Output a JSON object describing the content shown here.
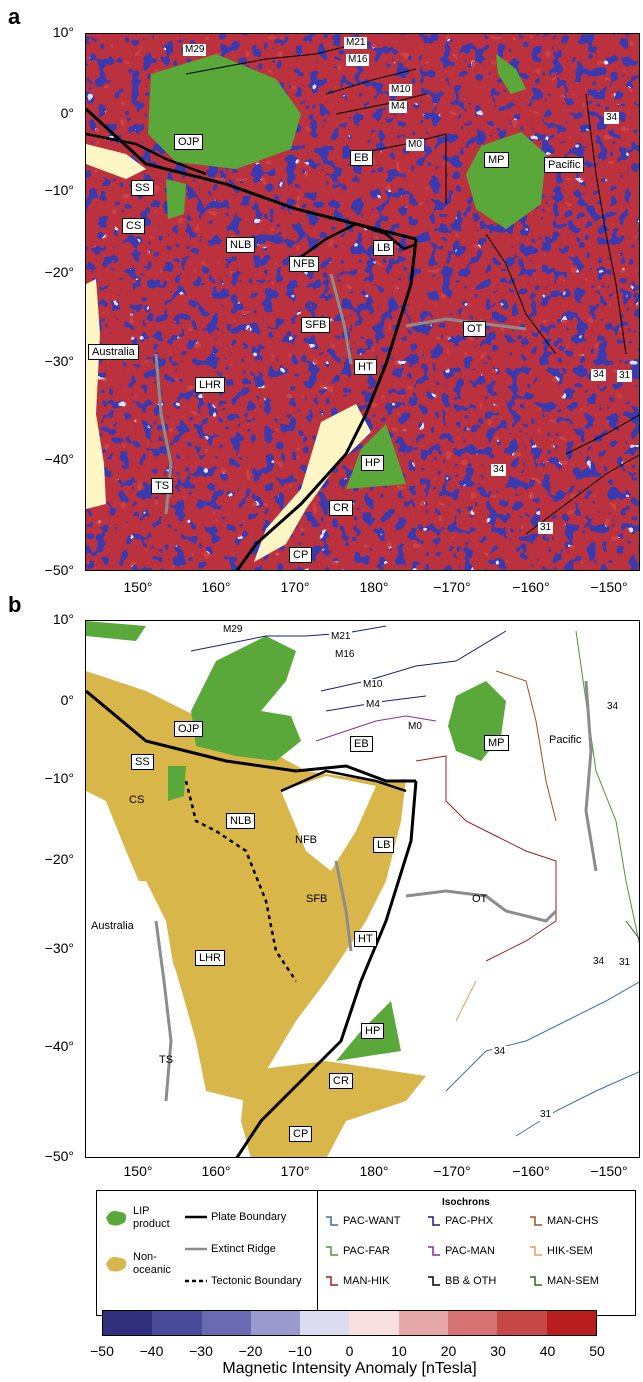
{
  "panels": [
    {
      "letter": "a",
      "type": "magnetic-anomaly-grid"
    },
    {
      "letter": "b",
      "type": "tectonic-interpretation"
    }
  ],
  "axes": {
    "lat_ticks": [
      "10°",
      "0°",
      "−10°",
      "−20°",
      "−30°",
      "−40°",
      "−50°"
    ],
    "lon_ticks": [
      "150°",
      "160°",
      "170°",
      "180°",
      "−170°",
      "−160°",
      "−150°"
    ]
  },
  "region_labels": {
    "australia": "Australia",
    "pacific": "Pacific",
    "ojp": "OJP",
    "ss": "SS",
    "cs": "CS",
    "eb": "EB",
    "mp": "MP",
    "nlb": "NLB",
    "nfb": "NFB",
    "lb": "LB",
    "sfb": "SFB",
    "ot": "OT",
    "ht": "HT",
    "lhr": "LHR",
    "hp": "HP",
    "ts": "TS",
    "cr": "CR",
    "cp": "CP"
  },
  "isochron_labels": {
    "m29": "M29",
    "m21": "M21",
    "m16": "M16",
    "m10": "M10",
    "m4": "M4",
    "m0": "M0",
    "c34": "34",
    "c31": "31"
  },
  "legend": {
    "lip": "LIP product",
    "non_oceanic": "Non-oceanic",
    "plate_boundary": "Plate Boundary",
    "extinct_ridge": "Extinct Ridge",
    "tectonic_boundary": "Tectonic Boundary",
    "isochrons_title": "Isochrons",
    "isochrons": [
      {
        "label": "PAC-WANT",
        "color": "#3c6fa0"
      },
      {
        "label": "PAC-PHX",
        "color": "#1c1c7a"
      },
      {
        "label": "MAN-CHS",
        "color": "#a0501e"
      },
      {
        "label": "PAC-FAR",
        "color": "#4a9a2e"
      },
      {
        "label": "PAC-MAN",
        "color": "#8a2a9a"
      },
      {
        "label": "HIK-SEM",
        "color": "#e0a060"
      },
      {
        "label": "MAN-HIK",
        "color": "#a01e1e"
      },
      {
        "label": "BB & OTH",
        "color": "#000000"
      },
      {
        "label": "MAN-SEM",
        "color": "#2e6a1e"
      }
    ]
  },
  "colorbar": {
    "title": "Magnetic Intensity Anomaly [nTesla]",
    "ticks": [
      "−50",
      "−40",
      "−30",
      "−20",
      "−10",
      "0",
      "10",
      "20",
      "30",
      "40",
      "50"
    ],
    "colors": [
      "#30307e",
      "#4a4a9a",
      "#6a6ab2",
      "#9a9ace",
      "#dcdcf0",
      "#f8e0e0",
      "#e6a8a8",
      "#d67272",
      "#c84848",
      "#b81e1e"
    ]
  },
  "colors": {
    "lip": "#5aa83a",
    "non_oceanic": "#d9b64a",
    "land": "#fff6c6",
    "anomaly_positive": "#c93030",
    "anomaly_negative": "#3a3ab0",
    "extinct_ridge": "#8c8c8c"
  }
}
